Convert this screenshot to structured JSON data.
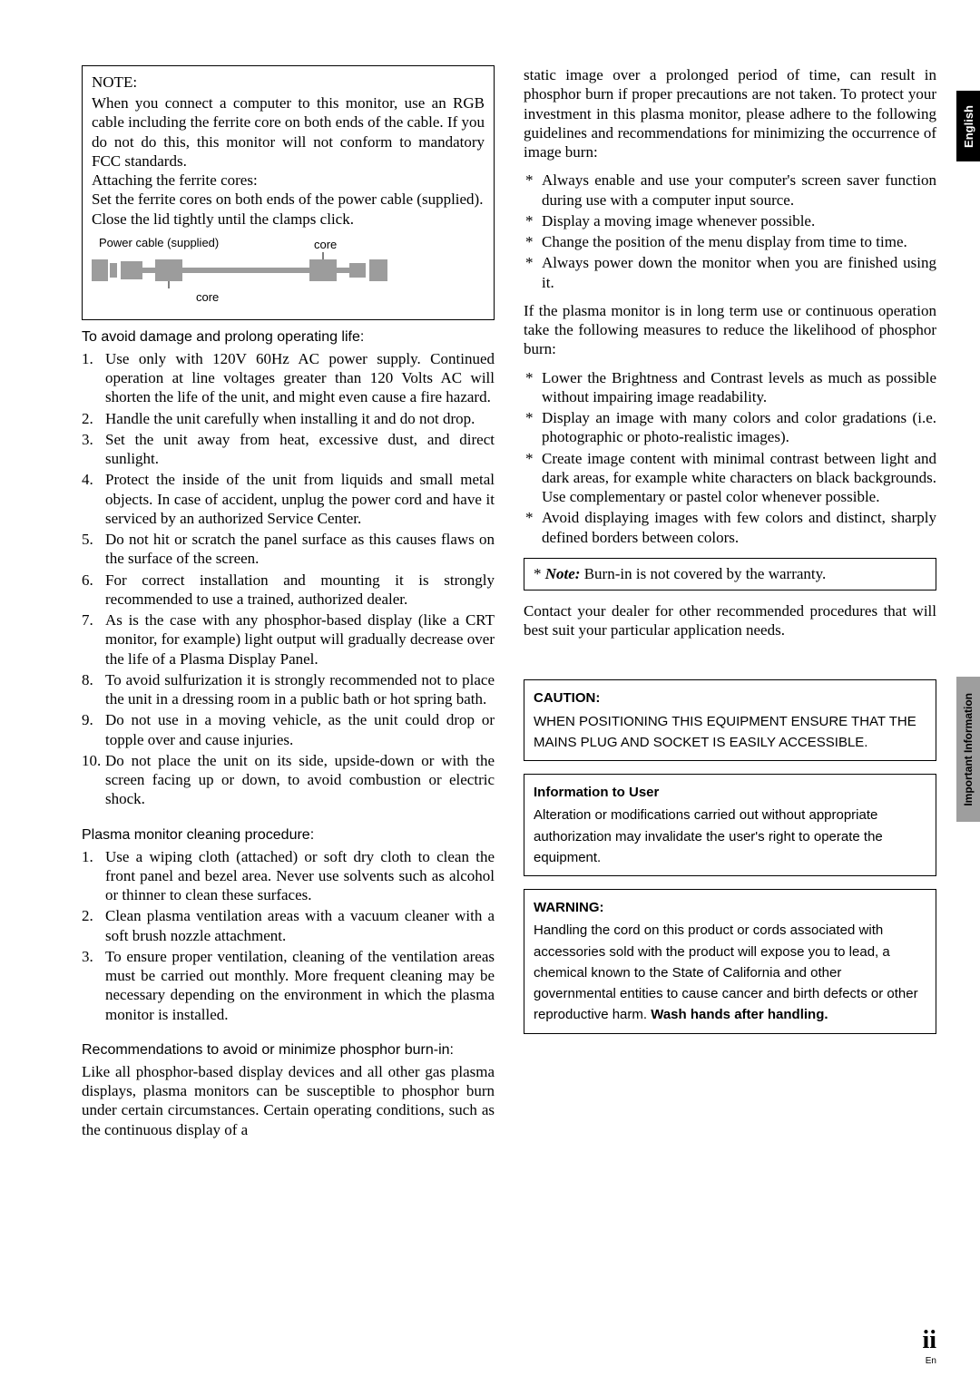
{
  "tabs": {
    "english": "English",
    "info": "Important Information"
  },
  "pageNumber": "ii",
  "pageLang": "En",
  "left": {
    "note": {
      "title": "NOTE:",
      "body1": "When you connect a computer to this monitor, use an RGB cable including the ferrite core on both ends of the cable. If you do not do this, this monitor will not conform to mandatory FCC standards.",
      "body2": "Attaching the ferrite cores:",
      "body3": "Set the ferrite cores on both ends of the power cable (supplied).",
      "body4": "Close the lid tightly until the clamps click.",
      "diagram": {
        "labelLeft": "Power cable (supplied)",
        "labelRightTop": "core",
        "labelBottom": "core"
      }
    },
    "damageHeading": "To avoid damage and prolong operating life:",
    "damageList": [
      "Use only with 120V 60Hz AC power supply. Continued operation at line voltages greater than 120 Volts AC will shorten the life of the unit, and might even cause a fire hazard.",
      "Handle the unit carefully when installing it and do not drop.",
      "Set the unit away from heat, excessive dust, and direct sunlight.",
      "Protect the inside of the unit from liquids and small metal objects. In case of accident, unplug the power cord and have it serviced by an authorized Service Center.",
      "Do not hit or scratch the panel surface as this causes flaws on the surface of the screen.",
      "For correct installation and mounting it is strongly recommended to use a trained, authorized dealer.",
      "As is the case with any phosphor-based display (like a CRT monitor, for example) light output will gradually decrease over the life of a Plasma Display Panel.",
      "To avoid sulfurization it is strongly recommended not to place the unit in a dressing room in a public bath or hot spring bath.",
      "Do not use in a moving vehicle, as the unit could drop or topple over and cause injuries.",
      "Do not place the unit on its side, upside-down or with the screen facing up or down, to avoid combustion or electric shock."
    ],
    "cleaningHeading": "Plasma monitor cleaning procedure:",
    "cleaningList": [
      "Use a wiping cloth (attached) or soft dry cloth to clean the front panel and bezel area. Never use solvents such as alcohol or thinner to clean these surfaces.",
      "Clean plasma ventilation areas with a vacuum cleaner with a soft brush nozzle attachment.",
      "To ensure proper ventilation, cleaning of the ventilation areas must be carried out monthly. More frequent cleaning may be necessary depending on the environment in which the plasma monitor is installed."
    ],
    "burnHeading": "Recommendations to avoid or minimize phosphor burn-in:",
    "burnPara": "Like all phosphor-based display devices and all other gas plasma displays, plasma monitors can be susceptible to phosphor burn under certain circumstances. Certain operating conditions, such as the continuous display of a"
  },
  "right": {
    "topPara": "static image over a prolonged period of time, can result in phosphor burn if proper precautions are not taken. To protect your investment in this plasma monitor, please adhere to the following guidelines and recommendations for minimizing the occurrence of image burn:",
    "list1": [
      "Always enable and use your computer's screen saver function during use with a computer input source.",
      "Display a moving image whenever possible.",
      "Change the position of the menu display from time to time.",
      "Always power down the monitor when you are finished using it."
    ],
    "midPara": "If the plasma monitor is in long term use or continuous operation take the following measures to reduce the likelihood of phosphor burn:",
    "list2": [
      "Lower the Brightness and Contrast levels as much as possible without impairing image readability.",
      "Display an image with many colors and color gradations (i.e. photographic or photo-realistic images).",
      "Create image content with minimal contrast between light and dark areas, for example white characters on black backgrounds. Use complementary or pastel color whenever possible.",
      "Avoid displaying images with few colors and distinct, sharply defined borders between colors."
    ],
    "noteBox": {
      "prefix": "* ",
      "bold": "Note:",
      "rest": " Burn-in is not covered by the warranty."
    },
    "contactPara": "Contact your dealer for other recommended procedures that will best suit your particular application needs.",
    "caution": {
      "title": "CAUTION:",
      "body": "WHEN POSITIONING THIS EQUIPMENT ENSURE THAT THE MAINS PLUG AND SOCKET IS EASILY ACCESSIBLE."
    },
    "infoUser": {
      "title": "Information to User",
      "body": "Alteration or modifications carried out without appropriate authorization may invalidate the user's right to operate the equipment."
    },
    "warning": {
      "title": "WARNING:",
      "body": "Handling the cord on this product or cords associated with accessories sold with the product will expose you to lead, a chemical known to the State of California and other governmental entities to cause cancer and birth defects or other reproductive harm. ",
      "boldTail": "Wash hands after handling."
    }
  }
}
